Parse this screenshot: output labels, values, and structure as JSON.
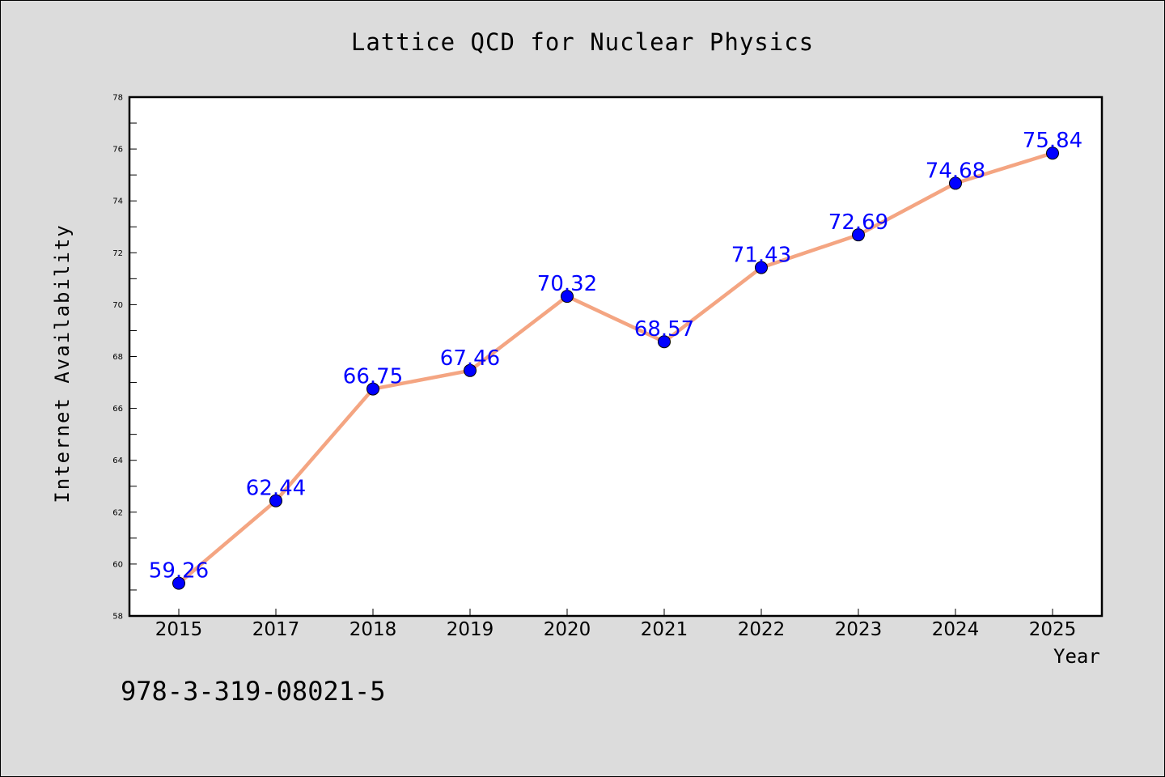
{
  "chart_data": {
    "type": "line",
    "title": "Lattice QCD for Nuclear Physics",
    "xlabel": "Year",
    "ylabel": "Internet Availability",
    "categories": [
      "2015",
      "2017",
      "2018",
      "2019",
      "2020",
      "2021",
      "2022",
      "2023",
      "2024",
      "2025"
    ],
    "series": [
      {
        "values": [
          59.26,
          62.44,
          66.75,
          67.46,
          70.32,
          68.57,
          71.43,
          72.69,
          74.68,
          75.84
        ],
        "labels": [
          "59.26",
          "62.44",
          "66.75",
          "67.46",
          "70.32",
          "68.57",
          "71.43",
          "72.69",
          "74.68",
          "75.84"
        ]
      }
    ],
    "ylim": [
      58,
      78
    ],
    "yticks": [
      58,
      60,
      62,
      64,
      66,
      68,
      70,
      72,
      74,
      76,
      78
    ],
    "grid": false,
    "line_color": "#f4a582",
    "marker_color": "#0000ff",
    "label_color": "#0000ff"
  },
  "annotation": "978-3-319-08021-5"
}
